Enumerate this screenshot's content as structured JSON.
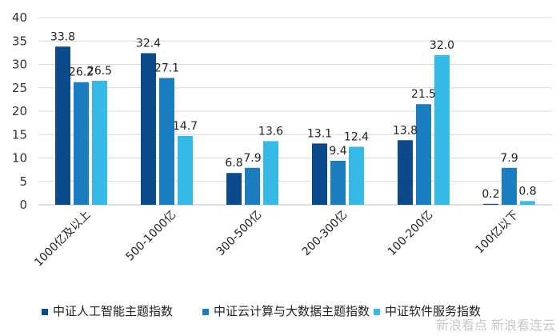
{
  "chart_data": {
    "type": "bar",
    "categories": [
      "1000亿及以上",
      "500-1000亿",
      "300-500亿",
      "200-300亿",
      "100-200亿",
      "100亿以下"
    ],
    "series": [
      {
        "name": "中证人工智能主题指数",
        "values": [
          33.8,
          32.4,
          6.8,
          13.1,
          13.8,
          0.2
        ],
        "labels": [
          "33.8",
          "32.4",
          "6.8",
          "13.1",
          "13.8",
          "0.2"
        ],
        "color": "#0b4a8b"
      },
      {
        "name": "中证云计算与大数据主题指数",
        "values": [
          26.2,
          27.1,
          7.9,
          9.4,
          21.5,
          7.9
        ],
        "labels": [
          "26.2",
          "27.1",
          "7.9",
          "9.4",
          "21.5",
          "7.9"
        ],
        "color": "#1a7dbf"
      },
      {
        "name": "中证软件服务指数",
        "values": [
          26.5,
          14.7,
          13.6,
          12.4,
          32.0,
          0.8
        ],
        "labels": [
          "26.5",
          "14.7",
          "13.6",
          "12.4",
          "32.0",
          "0.8"
        ],
        "color": "#35b9e6"
      }
    ],
    "yticks": [
      "0",
      "5",
      "10",
      "15",
      "20",
      "25",
      "30",
      "35",
      "40"
    ],
    "ylim": [
      0,
      40
    ],
    "grid": true,
    "legend": "bottom"
  },
  "watermark": "新浪看点 新浪看连云"
}
